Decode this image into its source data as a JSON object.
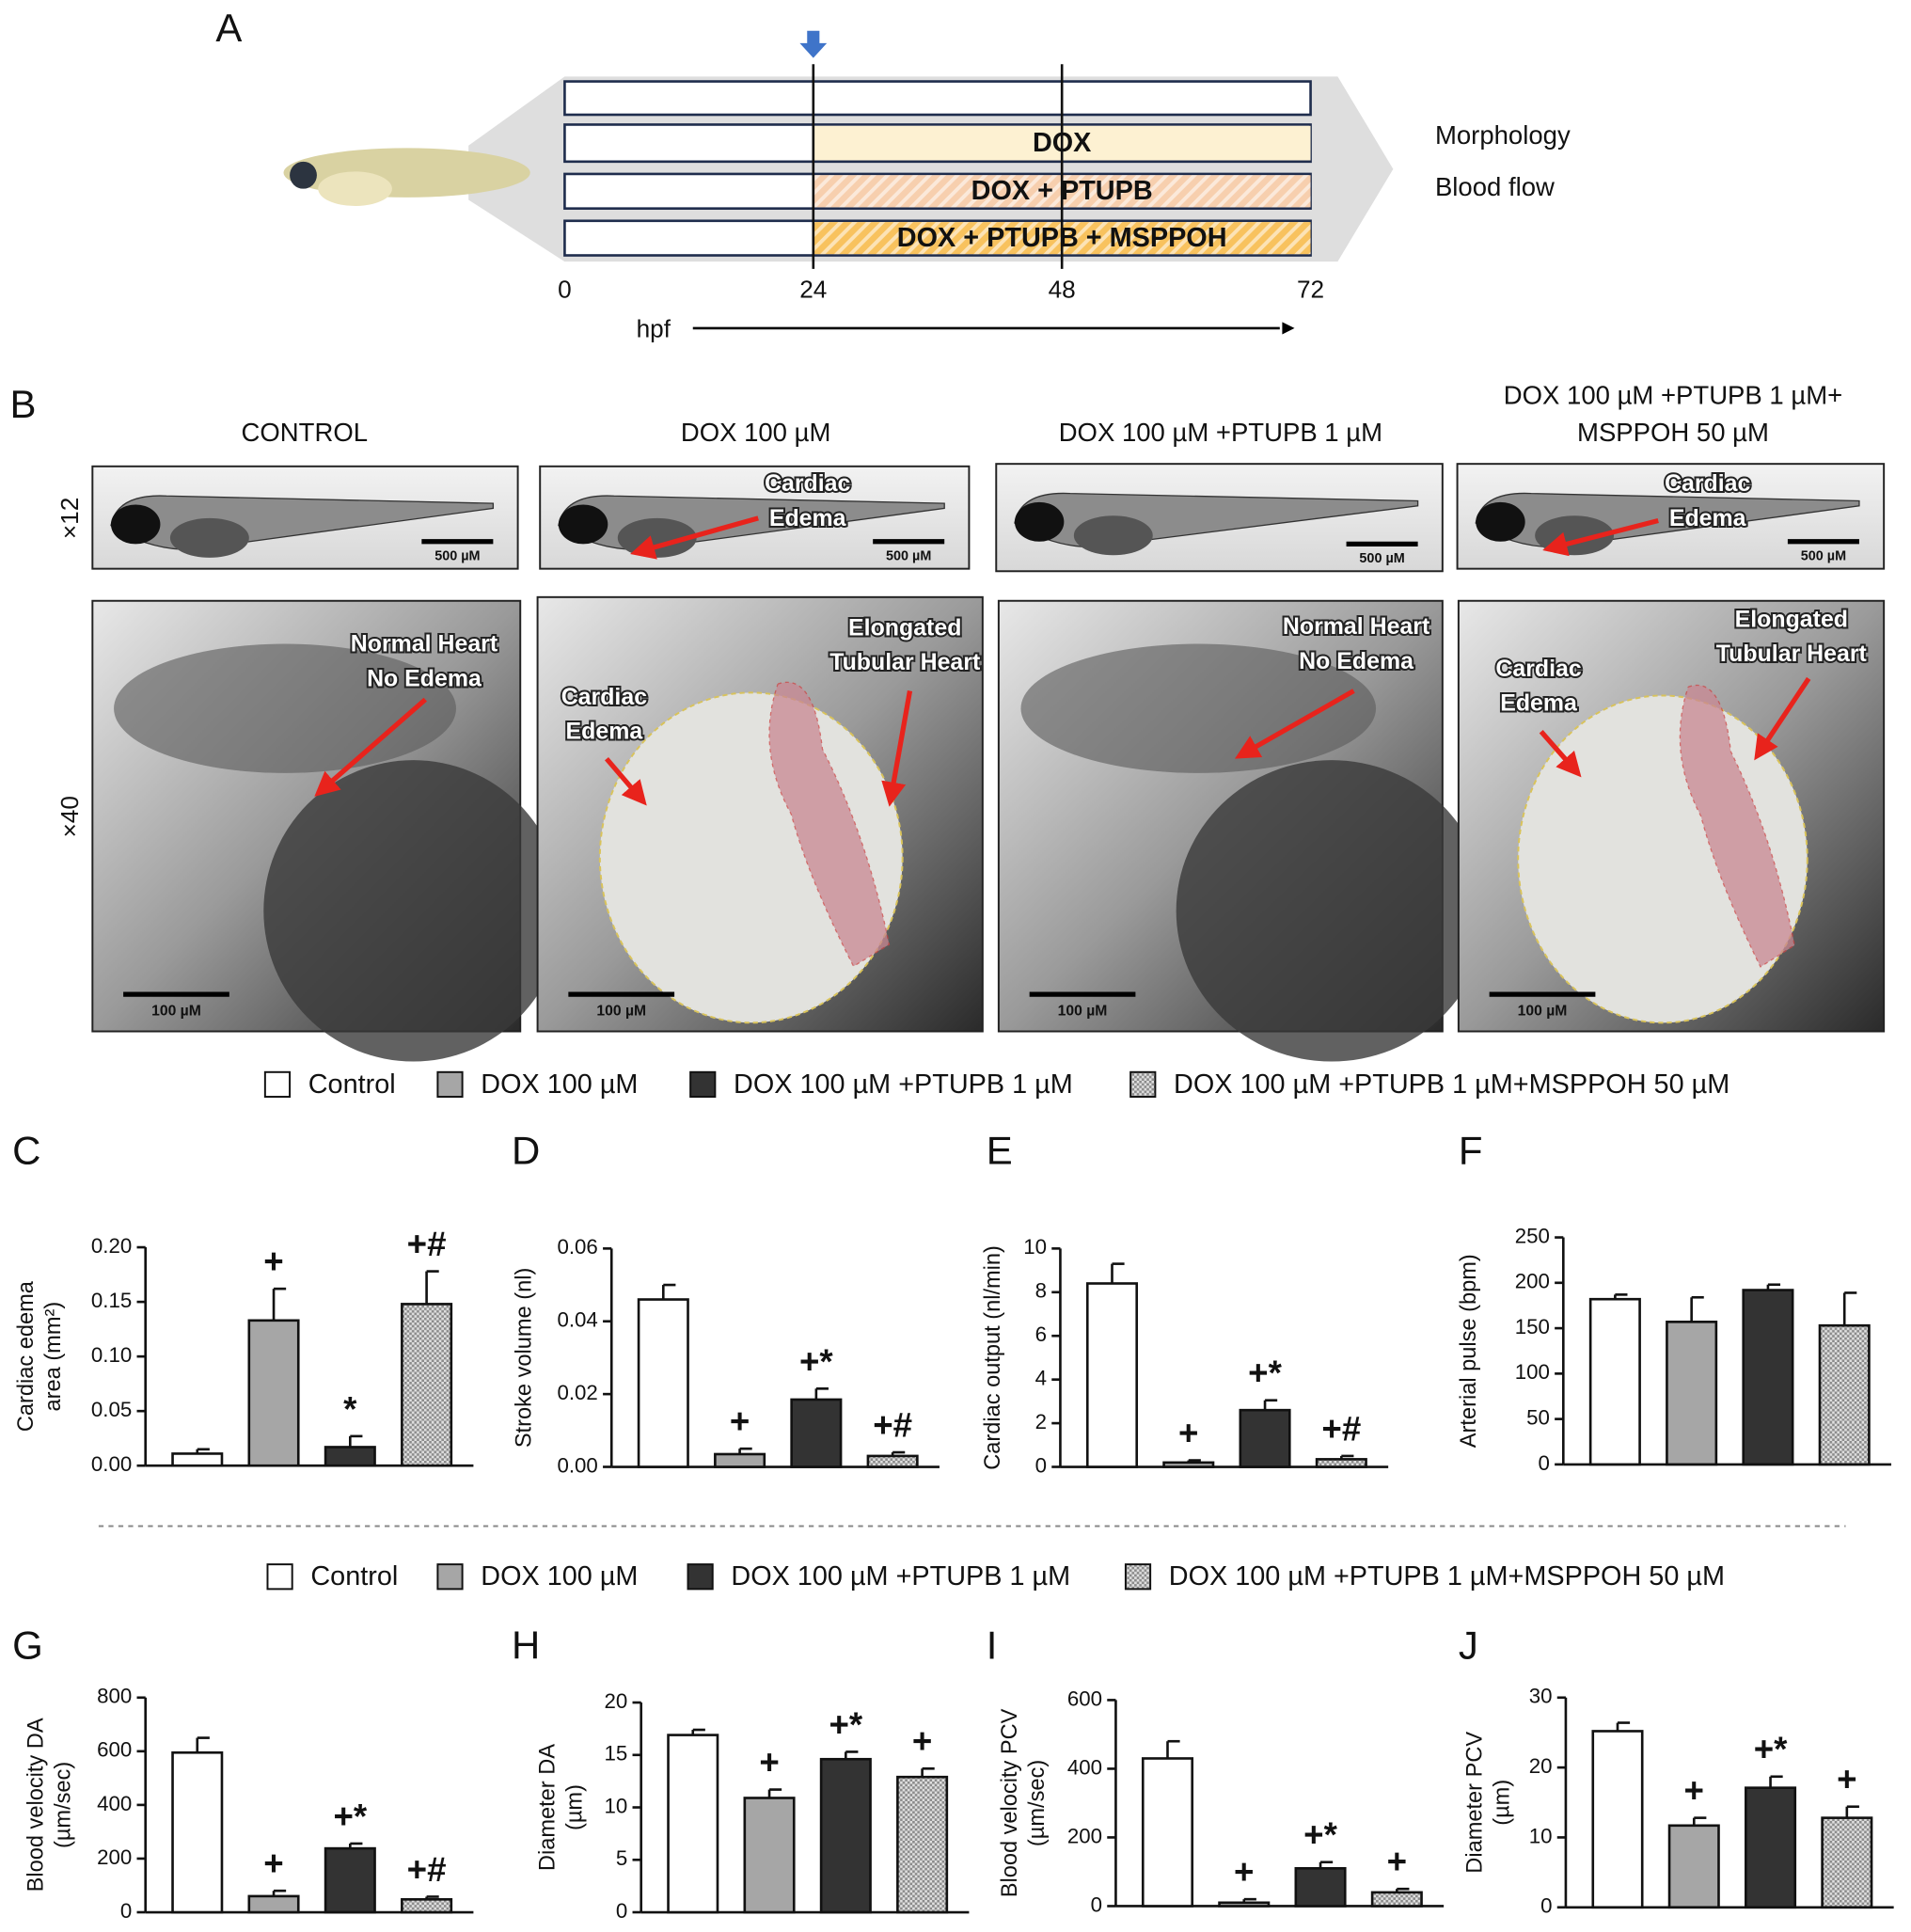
{
  "panel_a": {
    "label": "A",
    "xlim": [
      0,
      72
    ],
    "xticks": [
      0,
      24,
      48,
      72
    ],
    "xlabel": "hpf",
    "marker": 24,
    "treatments": [
      {
        "name": "DOX",
        "start": 24,
        "end": 72,
        "color": "#fdf1d2",
        "hatched": false
      },
      {
        "name": "DOX + PTUPB",
        "start": 24,
        "end": 72,
        "color": "#f7cfae",
        "hatched": true
      },
      {
        "name": "DOX + PTUPB + MSPPOH",
        "start": 24,
        "end": 72,
        "color": "#f8c25e",
        "hatched": true
      }
    ],
    "outcomes": [
      "Morphology",
      "Blood flow"
    ]
  },
  "panel_b": {
    "label": "B",
    "row_labels": [
      "×12",
      "×40"
    ],
    "columns": [
      {
        "title": [
          "CONTROL"
        ],
        "top_scale": "500 µM",
        "bottom_scale": "100 µM",
        "top_notes": [],
        "bottom_notes": [
          [
            "Normal Heart",
            "No Edema"
          ]
        ]
      },
      {
        "title": [
          "DOX 100 µM"
        ],
        "top_scale": "500 µM",
        "bottom_scale": "100 µM",
        "top_notes": [
          [
            "Cardiac",
            "Edema"
          ]
        ],
        "bottom_notes": [
          [
            "Cardiac",
            "Edema"
          ],
          [
            "Elongated",
            "Tubular Heart"
          ]
        ]
      },
      {
        "title": [
          "DOX 100 µM +PTUPB 1 µM"
        ],
        "top_scale": "500 µM",
        "bottom_scale": "100 µM",
        "top_notes": [],
        "bottom_notes": [
          [
            "Normal Heart",
            "No Edema"
          ]
        ]
      },
      {
        "title": [
          "DOX 100 µM +PTUPB 1 µM+",
          "MSPPOH 50 µM"
        ],
        "top_scale": "500 µM",
        "bottom_scale": "100 µM",
        "top_notes": [
          [
            "Cardiac",
            "Edema"
          ]
        ],
        "bottom_notes": [
          [
            "Elongated",
            "Tubular Heart"
          ],
          [
            "Cardiac",
            "Edema"
          ]
        ]
      }
    ]
  },
  "legends": [
    [
      "Control",
      "DOX 100 µM",
      "DOX 100 µM +PTUPB 1 µM",
      "DOX 100 µM +PTUPB 1 µM+MSPPOH 50 µM"
    ],
    [
      "Control",
      "DOX 100 µM",
      "DOX 100 µM +PTUPB 1 µM",
      "DOX 100 µM +PTUPB 1 µM+MSPPOH 50 µM"
    ]
  ],
  "chart_data": [
    {
      "type": "bar",
      "panel": "C",
      "ylabel": [
        "Cardiac edema",
        "area (mm²)"
      ],
      "ylim": [
        0,
        0.2
      ],
      "yticks": [
        {
          "value": 0,
          "label": "0.00"
        },
        0.05,
        {
          "value": 0.1,
          "label": "0.10"
        },
        0.15,
        {
          "value": 0.2,
          "label": "0.20"
        }
      ],
      "values": [
        0.011,
        0.133,
        0.017,
        0.148
      ],
      "errors": [
        0.004,
        0.029,
        0.01,
        0.03
      ],
      "annotations": [
        null,
        "+",
        "*",
        "+#"
      ],
      "colors": [
        "#ffffff",
        "#a6a6a6",
        "#333333",
        "checker"
      ]
    },
    {
      "type": "bar",
      "panel": "D",
      "ylabel": [
        "Stroke volume (nl)"
      ],
      "ylim": [
        0,
        0.06
      ],
      "yticks": [
        {
          "value": 0,
          "label": "0.00"
        },
        0.02,
        0.04,
        0.06
      ],
      "values": [
        0.046,
        0.0035,
        0.0185,
        0.003
      ],
      "errors": [
        0.004,
        0.0015,
        0.003,
        0.001
      ],
      "annotations": [
        null,
        "+",
        "+*",
        "+#"
      ],
      "colors": [
        "#ffffff",
        "#a6a6a6",
        "#333333",
        "checker"
      ]
    },
    {
      "type": "bar",
      "panel": "E",
      "ylabel": [
        "Cardiac output (nl/min)"
      ],
      "ylim": [
        0,
        10
      ],
      "yticks": [
        0,
        2,
        4,
        6,
        8,
        10
      ],
      "values": [
        8.4,
        0.2,
        2.6,
        0.35
      ],
      "errors": [
        0.9,
        0.1,
        0.45,
        0.15
      ],
      "annotations": [
        null,
        "+",
        "+*",
        "+#"
      ],
      "colors": [
        "#ffffff",
        "#a6a6a6",
        "#333333",
        "checker"
      ]
    },
    {
      "type": "bar",
      "panel": "F",
      "ylabel": [
        "Arterial pulse (bpm)"
      ],
      "ylim": [
        0,
        250
      ],
      "yticks": [
        0,
        50,
        100,
        150,
        200,
        250
      ],
      "values": [
        182,
        157,
        192,
        153
      ],
      "errors": [
        5,
        27,
        6,
        36
      ],
      "annotations": [
        null,
        null,
        null,
        null
      ],
      "colors": [
        "#ffffff",
        "#a6a6a6",
        "#333333",
        "checker"
      ]
    },
    {
      "type": "bar",
      "panel": "G",
      "ylabel": [
        "Blood velocity DA",
        "(µm/sec)"
      ],
      "ylim": [
        0,
        800
      ],
      "yticks": [
        0,
        200,
        400,
        600,
        800
      ],
      "values": [
        595,
        60,
        238,
        48
      ],
      "errors": [
        55,
        20,
        18,
        10
      ],
      "annotations": [
        null,
        "+",
        "+*",
        "+#"
      ],
      "colors": [
        "#ffffff",
        "#a6a6a6",
        "#333333",
        "checker"
      ]
    },
    {
      "type": "bar",
      "panel": "H",
      "ylabel": [
        "Diameter DA",
        "(µm)"
      ],
      "ylim": [
        0,
        20
      ],
      "yticks": [
        0,
        5,
        10,
        15,
        20
      ],
      "values": [
        16.9,
        10.9,
        14.6,
        12.9
      ],
      "errors": [
        0.5,
        0.8,
        0.7,
        0.8
      ],
      "annotations": [
        null,
        "+",
        "+*",
        "+"
      ],
      "colors": [
        "#ffffff",
        "#a6a6a6",
        "#333333",
        "checker"
      ]
    },
    {
      "type": "bar",
      "panel": "I",
      "ylabel": [
        "Blood velocity PCV",
        "(µm/sec)"
      ],
      "ylim": [
        0,
        600
      ],
      "yticks": [
        0,
        200,
        400,
        600
      ],
      "values": [
        430,
        10,
        110,
        40
      ],
      "errors": [
        50,
        10,
        18,
        10
      ],
      "annotations": [
        null,
        "+",
        "+*",
        "+"
      ],
      "colors": [
        "#ffffff",
        "#a6a6a6",
        "#333333",
        "checker"
      ]
    },
    {
      "type": "bar",
      "panel": "J",
      "ylabel": [
        "Diameter PCV",
        "(µm)"
      ],
      "ylim": [
        0,
        30
      ],
      "yticks": [
        0,
        10,
        20,
        30
      ],
      "values": [
        25.2,
        11.7,
        17.1,
        12.8
      ],
      "errors": [
        1.2,
        1.1,
        1.6,
        1.6
      ],
      "annotations": [
        null,
        "+",
        "+*",
        "+"
      ],
      "colors": [
        "#ffffff",
        "#a6a6a6",
        "#333333",
        "checker"
      ]
    }
  ]
}
